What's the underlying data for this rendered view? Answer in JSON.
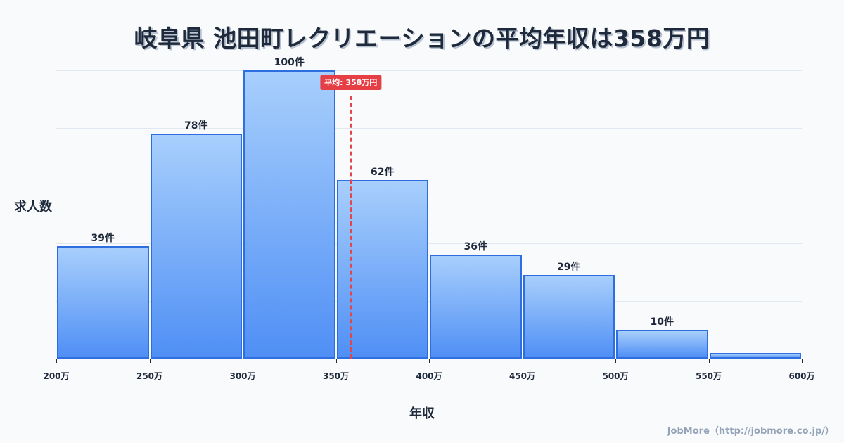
{
  "title": "岐阜県 池田町レクリエーションの平均年収は358万円",
  "ylabel": "求人数",
  "xlabel": "年収",
  "footer": "JobMore（http://jobmore.co.jp/）",
  "average": {
    "label": "平均: 358万円",
    "value": 358
  },
  "bar_labels": [
    "39件",
    "78件",
    "100件",
    "62件",
    "36件",
    "29件",
    "10件",
    ""
  ],
  "tick_labels": [
    "200万",
    "250万",
    "300万",
    "350万",
    "400万",
    "450万",
    "500万",
    "550万",
    "600万"
  ],
  "colors": {
    "bar_fill_top": "#a8cffc",
    "bar_fill_bottom": "#4f8ff5",
    "bar_border": "#2f6ee0",
    "average_line": "#e53e45",
    "title": "#1e293b"
  },
  "chart_data": {
    "type": "bar",
    "title": "岐阜県 池田町レクリエーションの平均年収は358万円",
    "xlabel": "年収",
    "ylabel": "求人数",
    "categories": [
      "200-250万",
      "250-300万",
      "300-350万",
      "350-400万",
      "400-450万",
      "450-500万",
      "500-550万",
      "550-600万"
    ],
    "values": [
      39,
      78,
      100,
      62,
      36,
      29,
      10,
      2
    ],
    "x_ticks": [
      "200万",
      "250万",
      "300万",
      "350万",
      "400万",
      "450万",
      "500万",
      "550万",
      "600万"
    ],
    "ylim": [
      0,
      100
    ],
    "grid": true,
    "annotations": [
      {
        "type": "vline",
        "x": 358,
        "label": "平均: 358万円"
      }
    ]
  }
}
